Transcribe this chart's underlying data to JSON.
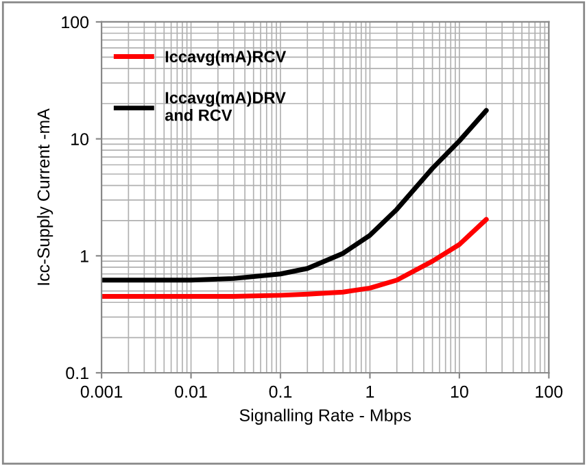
{
  "chart_data": {
    "type": "line",
    "xlabel": "Signalling Rate - Mbps",
    "ylabel": "Icc-Supply Current -mA",
    "log": "xy",
    "xlim": [
      0.001,
      100
    ],
    "xticks": [
      0.001,
      0.01,
      0.1,
      1,
      10,
      100
    ],
    "ylim": [
      0.1,
      100
    ],
    "yticks": [
      0.1,
      1,
      10,
      100
    ],
    "grid": true,
    "legend": "top left",
    "line_style": "solid",
    "marker": "none",
    "x": [
      0.001,
      0.01,
      0.03,
      0.1,
      0.2,
      0.5,
      1,
      2,
      5,
      10,
      20
    ],
    "series": [
      {
        "name": "Iccavg(mA)RCV",
        "color": "#ff0000",
        "values": [
          0.45,
          0.45,
          0.45,
          0.46,
          0.47,
          0.49,
          0.53,
          0.62,
          0.9,
          1.25,
          2.05
        ]
      },
      {
        "name": "Iccavg(mA)DRV\nand RCV",
        "color": "#000000",
        "values": [
          0.62,
          0.62,
          0.64,
          0.7,
          0.78,
          1.05,
          1.5,
          2.5,
          5.6,
          9.6,
          17.5
        ]
      }
    ]
  }
}
